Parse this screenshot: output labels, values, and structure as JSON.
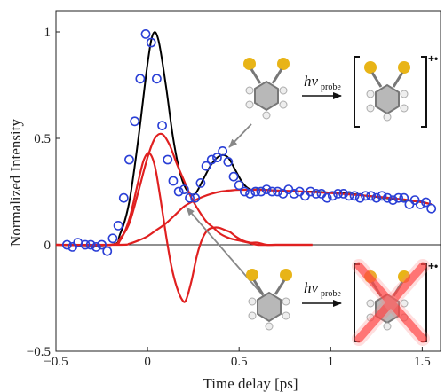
{
  "chart_data": {
    "type": "line",
    "xlabel": "Time delay [ps]",
    "ylabel": "Normalized Intensity",
    "xlim": [
      -0.5,
      1.6
    ],
    "ylim": [
      -0.5,
      1.1
    ],
    "xticks": [
      -0.5,
      0,
      0.5,
      1,
      1.5
    ],
    "xtick_labels": [
      "−0.5",
      "0",
      "0.5",
      "1",
      "1.5"
    ],
    "yticks": [
      -0.5,
      0,
      0.5,
      1
    ],
    "ytick_labels": [
      "−0.5",
      "0",
      "0.5",
      "1"
    ],
    "zero_line": true,
    "grid": false,
    "series": [
      {
        "style": "markers",
        "color": "#2a3fd6",
        "x": [
          -0.44,
          -0.41,
          -0.38,
          -0.34,
          -0.31,
          -0.28,
          -0.25,
          -0.22,
          -0.19,
          -0.16,
          -0.13,
          -0.1,
          -0.07,
          -0.04,
          -0.01,
          0.02,
          0.05,
          0.08,
          0.11,
          0.14,
          0.17,
          0.2,
          0.23,
          0.26,
          0.29,
          0.32,
          0.35,
          0.38,
          0.41,
          0.44,
          0.47,
          0.5,
          0.53,
          0.56,
          0.59,
          0.62,
          0.65,
          0.68,
          0.71,
          0.74,
          0.77,
          0.8,
          0.83,
          0.86,
          0.89,
          0.92,
          0.95,
          0.98,
          1.01,
          1.04,
          1.07,
          1.1,
          1.13,
          1.16,
          1.19,
          1.22,
          1.25,
          1.28,
          1.31,
          1.34,
          1.37,
          1.4,
          1.43,
          1.46,
          1.49,
          1.52,
          1.55
        ],
        "y": [
          0.0,
          -0.01,
          0.01,
          0.0,
          0.0,
          -0.01,
          0.0,
          -0.03,
          0.03,
          0.09,
          0.22,
          0.4,
          0.58,
          0.78,
          0.99,
          0.95,
          0.78,
          0.56,
          0.4,
          0.3,
          0.25,
          0.26,
          0.22,
          0.22,
          0.29,
          0.37,
          0.4,
          0.41,
          0.44,
          0.39,
          0.32,
          0.28,
          0.25,
          0.24,
          0.25,
          0.25,
          0.26,
          0.25,
          0.25,
          0.24,
          0.26,
          0.24,
          0.25,
          0.23,
          0.25,
          0.24,
          0.24,
          0.22,
          0.23,
          0.24,
          0.24,
          0.23,
          0.23,
          0.22,
          0.23,
          0.23,
          0.22,
          0.23,
          0.22,
          0.21,
          0.22,
          0.22,
          0.19,
          0.21,
          0.19,
          0.2,
          0.17
        ]
      },
      {
        "style": "line",
        "color": "#000000",
        "x": [
          -0.5,
          -0.2,
          -0.15,
          -0.1,
          -0.05,
          0.0,
          0.03,
          0.06,
          0.1,
          0.14,
          0.18,
          0.22,
          0.26,
          0.3,
          0.35,
          0.4,
          0.44,
          0.48,
          0.52,
          0.56,
          0.6,
          0.7,
          0.8,
          0.9,
          1.0,
          1.1,
          1.2,
          1.3,
          1.4,
          1.5,
          1.55
        ],
        "y": [
          0.0,
          0.0,
          0.05,
          0.2,
          0.5,
          0.85,
          0.99,
          0.96,
          0.75,
          0.5,
          0.33,
          0.25,
          0.24,
          0.3,
          0.38,
          0.42,
          0.41,
          0.35,
          0.29,
          0.26,
          0.26,
          0.255,
          0.25,
          0.25,
          0.245,
          0.24,
          0.23,
          0.22,
          0.21,
          0.2,
          0.19
        ]
      },
      {
        "style": "line",
        "color": "#e02020",
        "x": [
          -0.5,
          -0.2,
          -0.15,
          -0.1,
          -0.05,
          0.0,
          0.04,
          0.08,
          0.12,
          0.16,
          0.2,
          0.24,
          0.28,
          0.32,
          0.36,
          0.4,
          0.45,
          0.5,
          0.55,
          0.6,
          0.7,
          0.8,
          0.9
        ],
        "y": [
          0.0,
          0.0,
          0.03,
          0.1,
          0.25,
          0.41,
          0.5,
          0.52,
          0.47,
          0.38,
          0.3,
          0.22,
          0.16,
          0.11,
          0.08,
          0.05,
          0.03,
          0.02,
          0.01,
          0.0,
          0.0,
          0.0,
          0.0
        ]
      },
      {
        "style": "line",
        "color": "#e02020",
        "x": [
          -0.5,
          -0.2,
          -0.15,
          -0.1,
          -0.05,
          -0.02,
          0.01,
          0.04,
          0.07,
          0.1,
          0.13,
          0.16,
          0.19,
          0.21,
          0.24,
          0.27,
          0.3,
          0.33,
          0.36,
          0.39,
          0.42,
          0.45,
          0.48,
          0.52,
          0.56,
          0.6,
          0.65,
          0.7,
          0.8,
          0.9
        ],
        "y": [
          0.0,
          0.0,
          0.02,
          0.12,
          0.3,
          0.4,
          0.43,
          0.37,
          0.22,
          0.05,
          -0.1,
          -0.2,
          -0.26,
          -0.26,
          -0.17,
          -0.05,
          0.03,
          0.07,
          0.08,
          0.08,
          0.07,
          0.06,
          0.04,
          0.02,
          0.01,
          0.01,
          0.0,
          0.0,
          0.0,
          0.0
        ]
      },
      {
        "style": "line",
        "color": "#e02020",
        "x": [
          -0.5,
          -0.15,
          -0.1,
          -0.05,
          0.0,
          0.05,
          0.1,
          0.15,
          0.2,
          0.25,
          0.3,
          0.35,
          0.4,
          0.45,
          0.5,
          0.6,
          0.7,
          0.8,
          0.9,
          1.0,
          1.1,
          1.2,
          1.3,
          1.4,
          1.5,
          1.55
        ],
        "y": [
          0.0,
          0.0,
          0.005,
          0.02,
          0.04,
          0.07,
          0.1,
          0.14,
          0.18,
          0.205,
          0.225,
          0.24,
          0.25,
          0.255,
          0.258,
          0.258,
          0.255,
          0.252,
          0.248,
          0.243,
          0.237,
          0.23,
          0.222,
          0.213,
          0.2,
          0.19
        ]
      }
    ],
    "annotations": [
      {
        "text_italic": "hν",
        "subscript": "probe",
        "charge": "+•",
        "note": "top"
      },
      {
        "text_italic": "hν",
        "subscript": "probe",
        "charge": "+•",
        "note": "bottom"
      }
    ]
  }
}
